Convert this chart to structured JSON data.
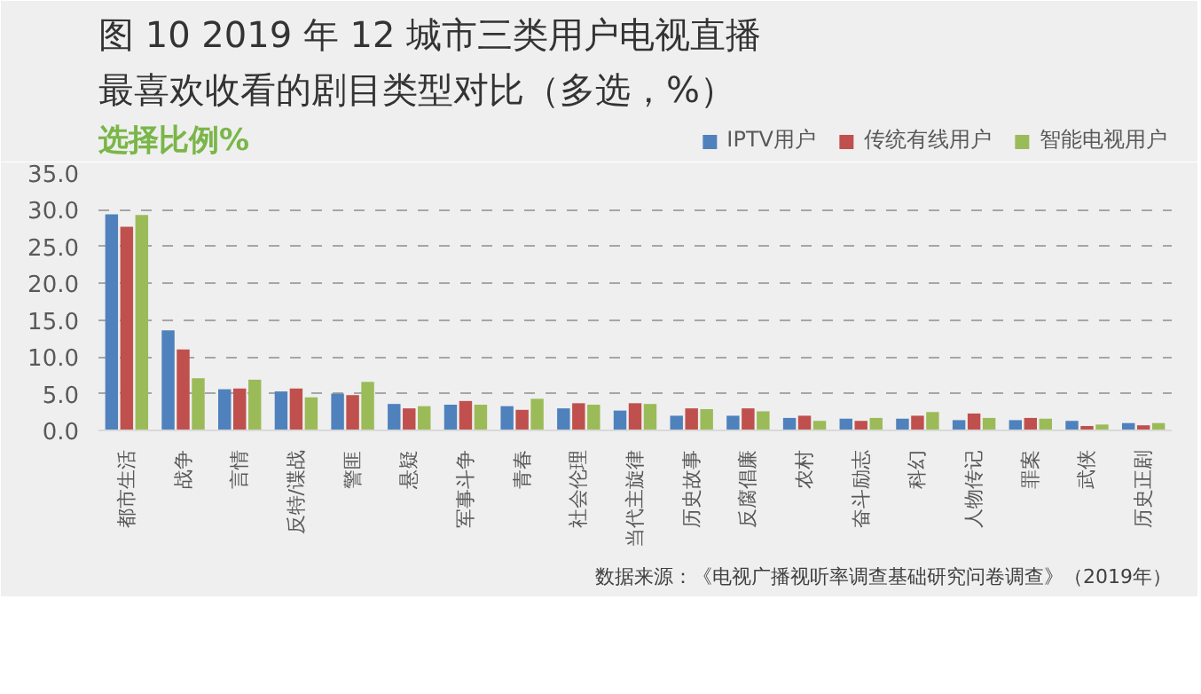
{
  "chart_data": {
    "type": "bar",
    "title": "图 10 2019 年 12 城市三类用户电视直播最喜欢收看的剧目类型对比（多选，%）",
    "ylabel": "选择比例%",
    "categories": [
      "都市生活",
      "战争",
      "言情",
      "反特/谍战",
      "警匪",
      "悬疑",
      "军事斗争",
      "青春",
      "社会伦理",
      "当代主旋律",
      "历史故事",
      "反腐倡廉",
      "农村",
      "奋斗励志",
      "科幻",
      "人物传记",
      "罪案",
      "武侠",
      "历史正剧"
    ],
    "series": [
      {
        "name": "IPTV用户",
        "color": "#4f81bd",
        "values": [
          29.4,
          13.6,
          5.6,
          5.3,
          5.0,
          3.6,
          3.5,
          3.3,
          3.0,
          2.7,
          2.0,
          2.0,
          1.7,
          1.6,
          1.6,
          1.4,
          1.4,
          1.3,
          1.0
        ]
      },
      {
        "name": "传统有线用户",
        "color": "#c0504d",
        "values": [
          27.7,
          11.0,
          5.7,
          5.7,
          4.8,
          3.0,
          4.0,
          2.8,
          3.7,
          3.7,
          3.0,
          3.0,
          2.0,
          1.3,
          2.0,
          2.3,
          1.7,
          0.6,
          0.7
        ]
      },
      {
        "name": "智能电视用户",
        "color": "#9bbb59",
        "values": [
          29.3,
          7.1,
          6.9,
          4.5,
          6.6,
          3.3,
          3.5,
          4.3,
          3.5,
          3.6,
          2.9,
          2.6,
          1.3,
          1.7,
          2.5,
          1.7,
          1.6,
          0.8,
          1.0
        ]
      }
    ],
    "ylim": [
      0,
      35
    ],
    "yticks": [
      {
        "value": 0,
        "label": "0.0"
      },
      {
        "value": 5,
        "label": "5.0"
      },
      {
        "value": 10,
        "label": "10.0"
      },
      {
        "value": 15,
        "label": "15.0"
      },
      {
        "value": 20,
        "label": "20.0"
      },
      {
        "value": 25,
        "label": "25.0"
      },
      {
        "value": 30,
        "label": "30.0"
      },
      {
        "value": 35,
        "label": "35.0"
      }
    ],
    "grid": "y",
    "legend": "top right",
    "annotations": [
      "数据来源：《电视广播视听率调查基础研究问卷调查》（2019年）"
    ]
  }
}
